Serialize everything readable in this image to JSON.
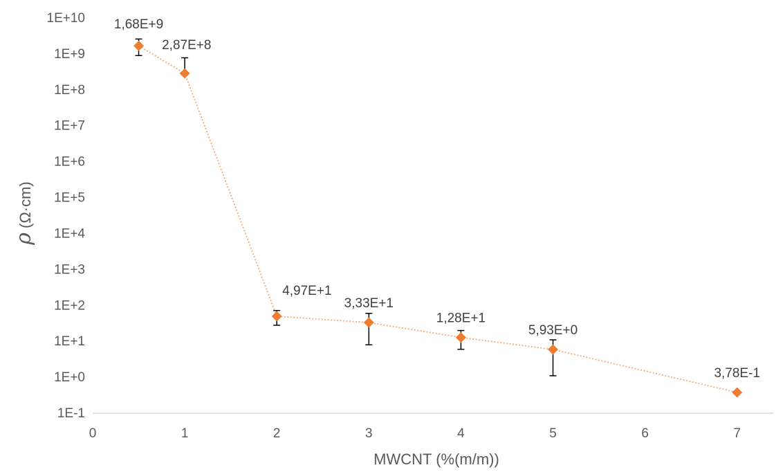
{
  "chart_data": {
    "type": "scatter",
    "log_y": true,
    "xlabel": "MWCNT (%(m/m))",
    "ylabel_symbol": "ρ",
    "ylabel_unit": " (Ω·cm)",
    "xlim": [
      0,
      7.4
    ],
    "ylim": [
      0.1,
      10000000000
    ],
    "x_ticks": [
      "0",
      "1",
      "2",
      "3",
      "4",
      "5",
      "6",
      "7"
    ],
    "y_ticks": [
      "1E-1",
      "1E+0",
      "1E+1",
      "1E+2",
      "1E+3",
      "1E+4",
      "1E+5",
      "1E+6",
      "1E+7",
      "1E+8",
      "1E+9",
      "1E+10"
    ],
    "grid": false,
    "marker_color": "#ed7d31",
    "line_style": "dotted",
    "points": [
      {
        "x": 0.5,
        "y": 1680000000,
        "label": "1,68E+9",
        "err_low": 900000000,
        "err_high": 2600000000
      },
      {
        "x": 1,
        "y": 287000000,
        "label": "2,87E+8",
        "err_low": 287000000,
        "err_high": 780000000
      },
      {
        "x": 2,
        "y": 49.7,
        "label": "4,97E+1",
        "err_low": 28,
        "err_high": 72
      },
      {
        "x": 3,
        "y": 33.3,
        "label": "3,33E+1",
        "err_low": 8,
        "err_high": 60
      },
      {
        "x": 4,
        "y": 12.8,
        "label": "1,28E+1",
        "err_low": 6,
        "err_high": 20
      },
      {
        "x": 5,
        "y": 5.93,
        "label": "5,93E+0",
        "err_low": 1.1,
        "err_high": 11
      },
      {
        "x": 7,
        "y": 0.378,
        "label": "3,78E-1",
        "err_low": 0.378,
        "err_high": 0.378
      }
    ]
  }
}
